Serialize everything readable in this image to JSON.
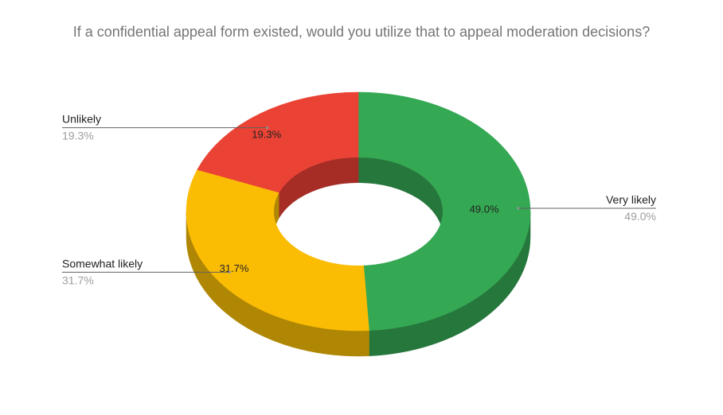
{
  "chart_data": {
    "type": "pie",
    "style": "3d-donut",
    "title": "If a confidential appeal form existed, would you utilize that to appeal moderation decisions?",
    "slices": [
      {
        "label": "Very likely",
        "value": 49.0,
        "display": "49.0%",
        "color": "#34a853",
        "side_color": "#26773c",
        "legend_side": "right"
      },
      {
        "label": "Somewhat likely",
        "value": 31.7,
        "display": "31.7%",
        "color": "#fbbc04",
        "side_color": "#b08704",
        "legend_side": "left"
      },
      {
        "label": "Unlikely",
        "value": 19.3,
        "display": "19.3%",
        "color": "#ea4335",
        "side_color": "#a52d26",
        "legend_side": "left"
      }
    ]
  }
}
